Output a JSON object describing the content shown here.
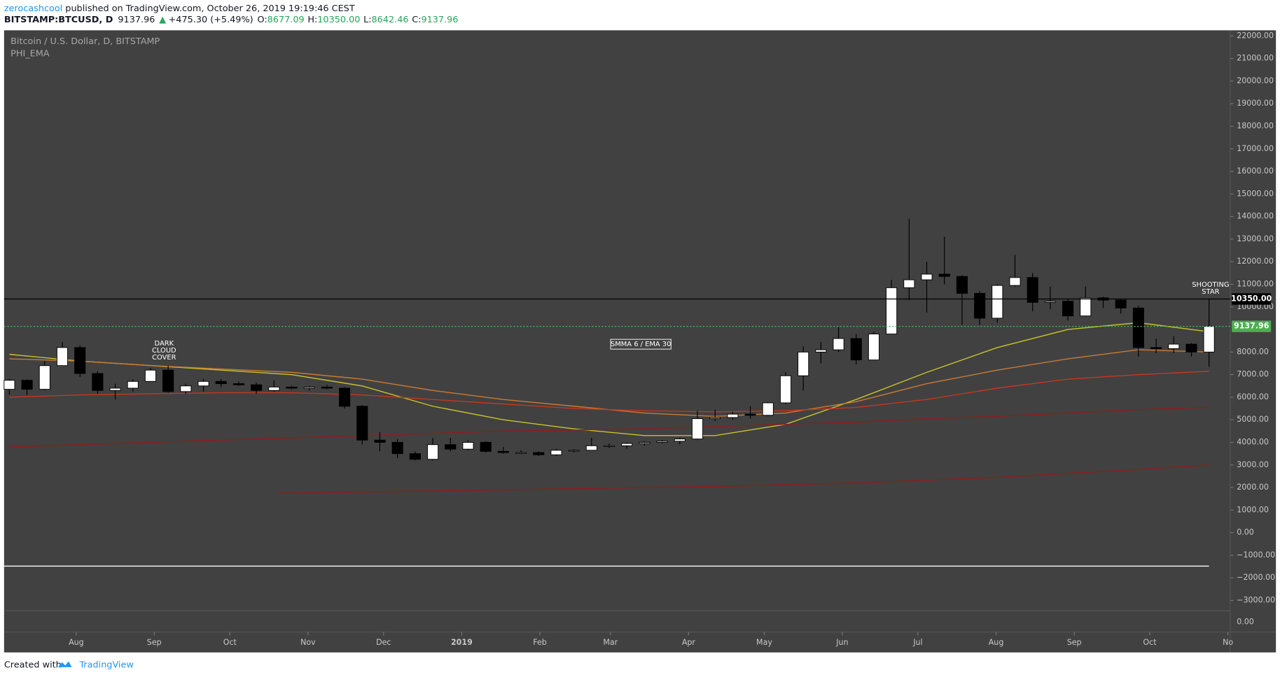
{
  "header": {
    "author": "zerocashcool",
    "published": " published on TradingView.com, October 26, 2019 19:19:46 CEST",
    "symbol": "BITSTAMP:BTCUSD, D",
    "price": "9137.96",
    "change_arrow": "▲",
    "change": "+475.30 (+5.49%)",
    "ohlc": [
      {
        "key": "O:",
        "value": "8677.09"
      },
      {
        "key": "H:",
        "value": "10350.00"
      },
      {
        "key": "L:",
        "value": "8642.46"
      },
      {
        "key": "C:",
        "value": "9137.96"
      }
    ]
  },
  "footer": {
    "text": "Created with",
    "brand": "TradingView"
  },
  "chart_data": {
    "type": "candlestick",
    "title": "Bitcoin / U.S. Dollar, D, BITSTAMP",
    "subtitle": "PHI_EMA",
    "open": [
      6350,
      6750,
      6350,
      7400,
      8200,
      7050,
      6300,
      6400,
      6700,
      7200,
      6250,
      6500,
      6700,
      6600,
      6550,
      6300,
      6450,
      6400,
      6450,
      6400,
      5600,
      4100,
      4000,
      3500,
      3250,
      3900,
      3700,
      4000,
      3600,
      3550,
      3550,
      3450,
      3650,
      3650,
      3850,
      3850,
      3950,
      4000,
      4050,
      4150,
      5050,
      5100,
      5250,
      5200,
      5750,
      6950,
      8000,
      8100,
      8600,
      7650,
      8800,
      10850,
      11200,
      11450,
      11350,
      10600,
      9500,
      10950,
      11300,
      10200,
      10250,
      9600,
      10400,
      10300,
      9950,
      8200,
      8150,
      8350,
      8000
    ],
    "high": [
      6800,
      6780,
      7600,
      8450,
      8300,
      7150,
      6600,
      6800,
      7300,
      7400,
      6600,
      6800,
      6800,
      6700,
      6650,
      6750,
      6500,
      6500,
      6550,
      6450,
      5650,
      4450,
      4150,
      3600,
      4200,
      4200,
      4100,
      4050,
      3800,
      3650,
      3600,
      3700,
      3700,
      4200,
      3950,
      4000,
      4050,
      4100,
      4200,
      5400,
      5450,
      5350,
      5600,
      5800,
      7100,
      8250,
      8450,
      9100,
      8800,
      8900,
      11200,
      13900,
      12000,
      13100,
      11400,
      10700,
      11000,
      12300,
      11500,
      10900,
      10350,
      10900,
      10450,
      10350,
      10050,
      8600,
      8700,
      8400,
      10350
    ],
    "low": [
      6100,
      6100,
      6300,
      7400,
      6900,
      6150,
      5900,
      6250,
      6700,
      6200,
      6150,
      6250,
      6450,
      6500,
      6150,
      6250,
      6350,
      6300,
      6350,
      5500,
      3900,
      3600,
      3300,
      3200,
      3200,
      3600,
      3650,
      3550,
      3500,
      3500,
      3400,
      3400,
      3550,
      3650,
      3750,
      3700,
      3850,
      3950,
      3900,
      4100,
      4950,
      5000,
      5050,
      5150,
      5700,
      6300,
      7500,
      8000,
      7450,
      7650,
      8800,
      10300,
      9750,
      11000,
      9200,
      9200,
      9300,
      10900,
      9800,
      9900,
      9400,
      9600,
      9950,
      9700,
      7800,
      7950,
      7950,
      7800,
      7350
    ],
    "close": [
      6750,
      6350,
      7400,
      8200,
      7050,
      6300,
      6400,
      6700,
      7200,
      6250,
      6500,
      6700,
      6600,
      6550,
      6300,
      6450,
      6400,
      6450,
      6400,
      5600,
      4100,
      4000,
      3500,
      3250,
      3900,
      3700,
      4000,
      3600,
      3550,
      3550,
      3450,
      3650,
      3650,
      3850,
      3850,
      3950,
      4000,
      4050,
      4150,
      5050,
      5100,
      5250,
      5200,
      5750,
      6950,
      8000,
      8100,
      8600,
      7650,
      8800,
      10850,
      11200,
      11450,
      11350,
      10600,
      9500,
      10950,
      11300,
      10200,
      10250,
      9600,
      10400,
      10300,
      9950,
      8200,
      8150,
      8350,
      8000,
      9137.96
    ],
    "up_color": "#ffffff",
    "down_color": "#000000",
    "wick_color": "#000000",
    "xlim": [
      -0.3,
      69.2
    ],
    "xticks": [
      {
        "value": 3.79,
        "label": "Aug"
      },
      {
        "value": 8.21,
        "label": "Sep"
      },
      {
        "value": 12.5,
        "label": "Oct"
      },
      {
        "value": 16.93,
        "label": "Nov"
      },
      {
        "value": 21.21,
        "label": "Dec"
      },
      {
        "value": 25.64,
        "label": "2019"
      },
      {
        "value": 30.07,
        "label": "Feb"
      },
      {
        "value": 34.07,
        "label": "Mar"
      },
      {
        "value": 38.5,
        "label": "Apr"
      },
      {
        "value": 42.79,
        "label": "May"
      },
      {
        "value": 47.21,
        "label": "Jun"
      },
      {
        "value": 51.5,
        "label": "Jul"
      },
      {
        "value": 55.93,
        "label": "Aug"
      },
      {
        "value": 60.36,
        "label": "Sep"
      },
      {
        "value": 64.64,
        "label": "Oct"
      },
      {
        "value": 69.07,
        "label": "No"
      }
    ],
    "ylim": [
      -4400,
      22250
    ],
    "yticks": [
      {
        "value": 22000,
        "label": "22000.00"
      },
      {
        "value": 21000,
        "label": "21000.00"
      },
      {
        "value": 20000,
        "label": "20000.00"
      },
      {
        "value": 19000,
        "label": "19000.00"
      },
      {
        "value": 18000,
        "label": "18000.00"
      },
      {
        "value": 17000,
        "label": "17000.00"
      },
      {
        "value": 16000,
        "label": "16000.00"
      },
      {
        "value": 15000,
        "label": "15000.00"
      },
      {
        "value": 14000,
        "label": "14000.00"
      },
      {
        "value": 13000,
        "label": "13000.00"
      },
      {
        "value": 12000,
        "label": "12000.00"
      },
      {
        "value": 11000,
        "label": "11000.00"
      },
      {
        "value": 10000,
        "label": "10000.00"
      },
      {
        "value": 8000,
        "label": "8000.00"
      },
      {
        "value": 7000,
        "label": "7000.00"
      },
      {
        "value": 6000,
        "label": "6000.00"
      },
      {
        "value": 5000,
        "label": "5000.00"
      },
      {
        "value": 4000,
        "label": "4000.00"
      },
      {
        "value": 3000,
        "label": "3000.00"
      },
      {
        "value": 2000,
        "label": "2000.00"
      },
      {
        "value": 1000,
        "label": "1000.00"
      },
      {
        "value": 0,
        "label": "0.00"
      },
      {
        "value": -1000,
        "label": "−1000.00"
      },
      {
        "value": -2000,
        "label": "−2000.00"
      },
      {
        "value": -3000,
        "label": "−3000.00"
      }
    ],
    "lines": [
      {
        "color": "#c9c42a",
        "x": [
          0,
          4,
          8,
          12,
          16,
          20,
          24,
          28,
          32,
          36,
          40,
          44,
          48,
          52,
          56,
          60,
          64,
          68
        ],
        "values": [
          7900,
          7600,
          7400,
          7200,
          7000,
          6500,
          5600,
          5000,
          4600,
          4300,
          4300,
          4800,
          5900,
          7100,
          8200,
          9000,
          9300,
          8900
        ]
      },
      {
        "color": "#c97b35",
        "x": [
          0,
          4,
          8,
          12,
          16,
          20,
          24,
          28,
          32,
          36,
          40,
          44,
          48,
          52,
          56,
          60,
          64,
          68
        ],
        "values": [
          7700,
          7600,
          7400,
          7250,
          7100,
          6800,
          6300,
          5900,
          5600,
          5300,
          5150,
          5300,
          5800,
          6600,
          7200,
          7700,
          8100,
          8000
        ]
      },
      {
        "color": "#c8361f",
        "x": [
          0,
          4,
          8,
          12,
          16,
          20,
          24,
          28,
          32,
          36,
          40,
          44,
          48,
          52,
          56,
          60,
          64,
          68
        ],
        "values": [
          6000,
          6100,
          6150,
          6200,
          6200,
          6100,
          5900,
          5700,
          5500,
          5400,
          5350,
          5400,
          5550,
          5900,
          6400,
          6800,
          7000,
          7150
        ]
      },
      {
        "color": "#8f1d1d",
        "x": [
          0,
          4,
          8,
          12,
          16,
          20,
          24,
          28,
          32,
          36,
          40,
          44,
          48,
          52,
          56,
          60,
          64,
          68
        ],
        "values": [
          3800,
          3900,
          4000,
          4100,
          4200,
          4300,
          4400,
          4500,
          4550,
          4600,
          4700,
          4800,
          4900,
          5050,
          5150,
          5300,
          5450,
          5550
        ]
      },
      {
        "color": "#8f1d1d",
        "x": [
          15.2,
          24,
          32,
          40,
          48,
          56,
          64,
          68
        ],
        "values": [
          1750,
          1850,
          1950,
          2050,
          2200,
          2450,
          2800,
          3000
        ]
      }
    ],
    "hline": {
      "value": -1480,
      "color": "#ffffff"
    },
    "levels": [
      {
        "value": 10350,
        "label": "10350.00",
        "color": "#000000"
      },
      {
        "value": 9137.96,
        "label": "9137.96",
        "color": "#4caf50"
      }
    ],
    "annotations": [
      {
        "text": [
          "DARK",
          "CLOUD",
          "COVER"
        ]
      },
      {
        "text": [
          "SMMA 6 / EMA 30"
        ]
      },
      {
        "text": [
          "SHOOTING",
          "STAR"
        ]
      }
    ]
  }
}
